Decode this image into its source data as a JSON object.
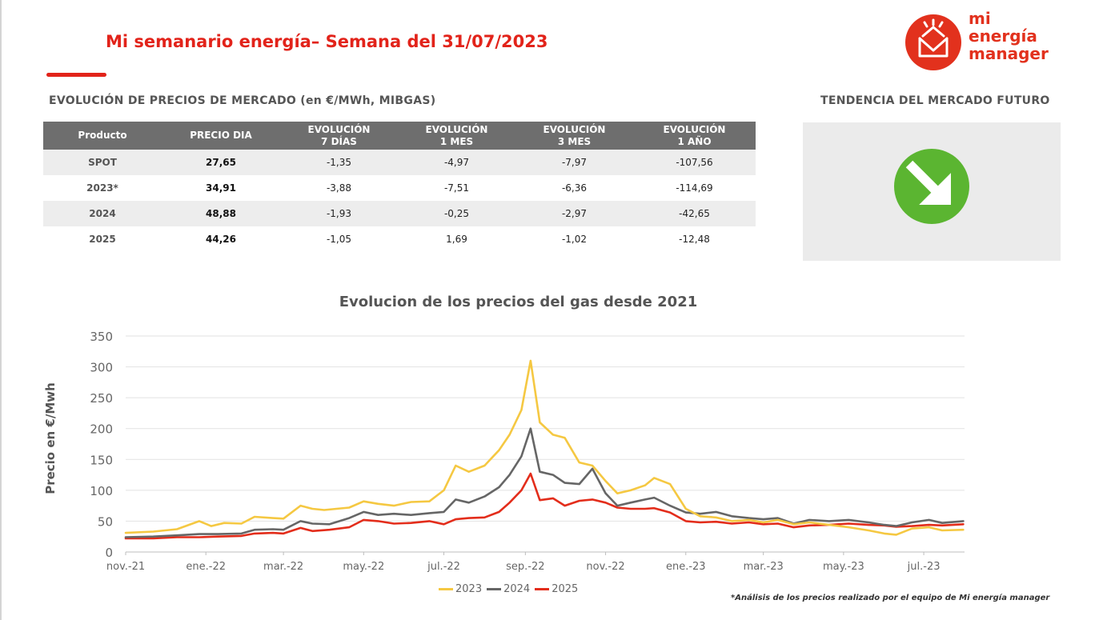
{
  "header": {
    "title": "Mi semanario energía– Semana del 31/07/2023",
    "logo_lines": [
      "mi",
      "energía",
      "manager"
    ]
  },
  "brand_color": "#e2231a",
  "market_table": {
    "title": "EVOLUCIÓN DE PRECIOS DE MERCADO (en €/MWh, MIBGAS)",
    "columns": [
      [
        "Producto"
      ],
      [
        "PRECIO DIA"
      ],
      [
        "EVOLUCIÓN",
        "7 DÍAS"
      ],
      [
        "EVOLUCIÓN",
        "1 MES"
      ],
      [
        "EVOLUCIÓN",
        "3 MES"
      ],
      [
        "EVOLUCIÓN",
        "1 AÑO"
      ]
    ],
    "rows": [
      [
        "SPOT",
        "27,65",
        "-1,35",
        "-4,97",
        "-7,97",
        "-107,56"
      ],
      [
        "2023*",
        "34,91",
        "-3,88",
        "-7,51",
        "-6,36",
        "-114,69"
      ],
      [
        "2024",
        "48,88",
        "-1,93",
        "-0,25",
        "-2,97",
        "-42,65"
      ],
      [
        "2025",
        "44,26",
        "-1,05",
        "1,69",
        "-1,02",
        "-12,48"
      ]
    ]
  },
  "trend": {
    "title": "TENDENCIA DEL MERCADO FUTURO",
    "icon": "down-right-arrow-icon",
    "color": "#5bb531"
  },
  "footnote": "*Análisis de los precios realizado por el equipo de Mi energía manager",
  "chart_data": {
    "type": "line",
    "title": "Evolucion de los precios del gas desde 2021",
    "xlabel": "",
    "ylabel": "Precio en €/Mwh",
    "ylim": [
      0,
      350
    ],
    "yticks": [
      0,
      50,
      100,
      150,
      200,
      250,
      300,
      350
    ],
    "xlim": [
      "2021-11-01",
      "2023-08-01"
    ],
    "xticks": [
      {
        "label": "nov.-21",
        "date": "2021-11-01"
      },
      {
        "label": "ene.-22",
        "date": "2022-01-01"
      },
      {
        "label": "mar.-22",
        "date": "2022-03-01"
      },
      {
        "label": "may.-22",
        "date": "2022-05-01"
      },
      {
        "label": "jul.-22",
        "date": "2022-07-01"
      },
      {
        "label": "sep.-22",
        "date": "2022-09-01"
      },
      {
        "label": "nov.-22",
        "date": "2022-11-01"
      },
      {
        "label": "ene.-23",
        "date": "2023-01-01"
      },
      {
        "label": "mar.-23",
        "date": "2023-03-01"
      },
      {
        "label": "may.-23",
        "date": "2023-05-01"
      },
      {
        "label": "jul.-23",
        "date": "2023-07-01"
      }
    ],
    "grid": true,
    "legend": "bottom",
    "series": [
      {
        "name": "2023",
        "color": "#f5c842",
        "points": [
          [
            "2021-11-01",
            31
          ],
          [
            "2021-11-22",
            33
          ],
          [
            "2021-12-10",
            37
          ],
          [
            "2021-12-27",
            50
          ],
          [
            "2022-01-05",
            42
          ],
          [
            "2022-01-15",
            47
          ],
          [
            "2022-01-28",
            46
          ],
          [
            "2022-02-07",
            57
          ],
          [
            "2022-02-21",
            55
          ],
          [
            "2022-03-01",
            54
          ],
          [
            "2022-03-14",
            75
          ],
          [
            "2022-03-23",
            70
          ],
          [
            "2022-04-01",
            68
          ],
          [
            "2022-04-20",
            72
          ],
          [
            "2022-05-01",
            82
          ],
          [
            "2022-05-12",
            78
          ],
          [
            "2022-05-24",
            75
          ],
          [
            "2022-06-06",
            81
          ],
          [
            "2022-06-20",
            82
          ],
          [
            "2022-07-01",
            100
          ],
          [
            "2022-07-10",
            140
          ],
          [
            "2022-07-20",
            130
          ],
          [
            "2022-08-01",
            140
          ],
          [
            "2022-08-12",
            165
          ],
          [
            "2022-08-20",
            190
          ],
          [
            "2022-08-29",
            230
          ],
          [
            "2022-09-05",
            310
          ],
          [
            "2022-09-12",
            210
          ],
          [
            "2022-09-22",
            190
          ],
          [
            "2022-10-01",
            185
          ],
          [
            "2022-10-12",
            145
          ],
          [
            "2022-10-22",
            140
          ],
          [
            "2022-11-01",
            115
          ],
          [
            "2022-11-10",
            95
          ],
          [
            "2022-11-20",
            100
          ],
          [
            "2022-12-01",
            108
          ],
          [
            "2022-12-08",
            120
          ],
          [
            "2022-12-20",
            110
          ],
          [
            "2023-01-01",
            70
          ],
          [
            "2023-01-12",
            58
          ],
          [
            "2023-01-24",
            56
          ],
          [
            "2023-02-05",
            50
          ],
          [
            "2023-02-18",
            52
          ],
          [
            "2023-03-01",
            48
          ],
          [
            "2023-03-12",
            52
          ],
          [
            "2023-03-24",
            45
          ],
          [
            "2023-04-05",
            48
          ],
          [
            "2023-04-20",
            44
          ],
          [
            "2023-05-05",
            40
          ],
          [
            "2023-05-20",
            35
          ],
          [
            "2023-06-01",
            30
          ],
          [
            "2023-06-10",
            28
          ],
          [
            "2023-06-22",
            38
          ],
          [
            "2023-07-05",
            40
          ],
          [
            "2023-07-15",
            35
          ],
          [
            "2023-07-31",
            36
          ]
        ]
      },
      {
        "name": "2024",
        "color": "#666666",
        "points": [
          [
            "2021-11-01",
            24
          ],
          [
            "2021-11-22",
            25
          ],
          [
            "2021-12-10",
            27
          ],
          [
            "2021-12-27",
            29
          ],
          [
            "2022-01-10",
            29
          ],
          [
            "2022-01-28",
            30
          ],
          [
            "2022-02-07",
            36
          ],
          [
            "2022-02-21",
            37
          ],
          [
            "2022-03-01",
            36
          ],
          [
            "2022-03-14",
            50
          ],
          [
            "2022-03-23",
            46
          ],
          [
            "2022-04-05",
            45
          ],
          [
            "2022-04-20",
            55
          ],
          [
            "2022-05-01",
            65
          ],
          [
            "2022-05-12",
            60
          ],
          [
            "2022-05-24",
            62
          ],
          [
            "2022-06-06",
            60
          ],
          [
            "2022-06-20",
            63
          ],
          [
            "2022-07-01",
            65
          ],
          [
            "2022-07-10",
            85
          ],
          [
            "2022-07-20",
            80
          ],
          [
            "2022-08-01",
            90
          ],
          [
            "2022-08-12",
            105
          ],
          [
            "2022-08-20",
            125
          ],
          [
            "2022-08-29",
            155
          ],
          [
            "2022-09-05",
            200
          ],
          [
            "2022-09-12",
            130
          ],
          [
            "2022-09-22",
            125
          ],
          [
            "2022-10-01",
            112
          ],
          [
            "2022-10-12",
            110
          ],
          [
            "2022-10-22",
            135
          ],
          [
            "2022-11-01",
            95
          ],
          [
            "2022-11-10",
            75
          ],
          [
            "2022-11-20",
            80
          ],
          [
            "2022-12-01",
            85
          ],
          [
            "2022-12-08",
            88
          ],
          [
            "2022-12-20",
            75
          ],
          [
            "2023-01-01",
            64
          ],
          [
            "2023-01-12",
            62
          ],
          [
            "2023-01-24",
            65
          ],
          [
            "2023-02-05",
            58
          ],
          [
            "2023-02-18",
            55
          ],
          [
            "2023-03-01",
            53
          ],
          [
            "2023-03-12",
            55
          ],
          [
            "2023-03-24",
            46
          ],
          [
            "2023-04-05",
            52
          ],
          [
            "2023-04-20",
            50
          ],
          [
            "2023-05-05",
            52
          ],
          [
            "2023-05-20",
            48
          ],
          [
            "2023-06-01",
            44
          ],
          [
            "2023-06-10",
            42
          ],
          [
            "2023-06-22",
            48
          ],
          [
            "2023-07-05",
            52
          ],
          [
            "2023-07-15",
            47
          ],
          [
            "2023-07-31",
            50
          ]
        ]
      },
      {
        "name": "2025",
        "color": "#e32d1b",
        "points": [
          [
            "2021-11-01",
            22
          ],
          [
            "2021-11-22",
            22
          ],
          [
            "2021-12-10",
            24
          ],
          [
            "2021-12-27",
            24
          ],
          [
            "2022-01-10",
            25
          ],
          [
            "2022-01-28",
            26
          ],
          [
            "2022-02-07",
            30
          ],
          [
            "2022-02-21",
            31
          ],
          [
            "2022-03-01",
            30
          ],
          [
            "2022-03-14",
            39
          ],
          [
            "2022-03-23",
            34
          ],
          [
            "2022-04-05",
            36
          ],
          [
            "2022-04-20",
            40
          ],
          [
            "2022-05-01",
            52
          ],
          [
            "2022-05-12",
            50
          ],
          [
            "2022-05-24",
            46
          ],
          [
            "2022-06-06",
            47
          ],
          [
            "2022-06-20",
            50
          ],
          [
            "2022-07-01",
            45
          ],
          [
            "2022-07-10",
            53
          ],
          [
            "2022-07-20",
            55
          ],
          [
            "2022-08-01",
            56
          ],
          [
            "2022-08-12",
            65
          ],
          [
            "2022-08-20",
            80
          ],
          [
            "2022-08-29",
            100
          ],
          [
            "2022-09-05",
            127
          ],
          [
            "2022-09-12",
            84
          ],
          [
            "2022-09-22",
            87
          ],
          [
            "2022-10-01",
            75
          ],
          [
            "2022-10-12",
            83
          ],
          [
            "2022-10-22",
            85
          ],
          [
            "2022-11-01",
            80
          ],
          [
            "2022-11-10",
            72
          ],
          [
            "2022-11-20",
            70
          ],
          [
            "2022-12-01",
            70
          ],
          [
            "2022-12-08",
            71
          ],
          [
            "2022-12-20",
            64
          ],
          [
            "2023-01-01",
            50
          ],
          [
            "2023-01-12",
            48
          ],
          [
            "2023-01-24",
            49
          ],
          [
            "2023-02-05",
            46
          ],
          [
            "2023-02-18",
            48
          ],
          [
            "2023-03-01",
            45
          ],
          [
            "2023-03-12",
            46
          ],
          [
            "2023-03-24",
            40
          ],
          [
            "2023-04-05",
            43
          ],
          [
            "2023-04-20",
            44
          ],
          [
            "2023-05-05",
            46
          ],
          [
            "2023-05-20",
            44
          ],
          [
            "2023-06-01",
            43
          ],
          [
            "2023-06-10",
            41
          ],
          [
            "2023-06-22",
            42
          ],
          [
            "2023-07-05",
            44
          ],
          [
            "2023-07-15",
            43
          ],
          [
            "2023-07-31",
            45
          ]
        ]
      }
    ]
  }
}
